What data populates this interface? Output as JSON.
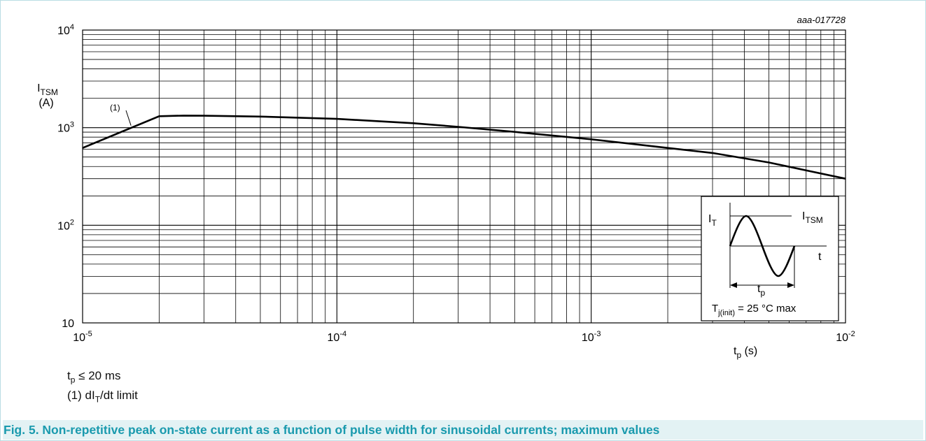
{
  "chart_data": {
    "type": "line",
    "scale": {
      "x": "log",
      "y": "log"
    },
    "xlim": [
      1e-05,
      0.01
    ],
    "ylim": [
      10,
      10000
    ],
    "grid": true,
    "code": "aaa-017728",
    "ylabel": {
      "main": "I",
      "sub": "TSM",
      "unit": "(A)"
    },
    "xlabel": {
      "main": "t",
      "sub": "p",
      "unit": " (s)"
    },
    "x_ticks": [
      {
        "base": "10",
        "exp": "-5"
      },
      {
        "base": "10",
        "exp": "-4"
      },
      {
        "base": "10",
        "exp": "-3"
      },
      {
        "base": "10",
        "exp": "-2"
      }
    ],
    "y_ticks": [
      {
        "base": "10",
        "exp": ""
      },
      {
        "base": "10",
        "exp": "2"
      },
      {
        "base": "10",
        "exp": "3"
      },
      {
        "base": "10",
        "exp": "4"
      }
    ],
    "series": [
      {
        "x": [
          1e-05,
          2e-05,
          2.5e-05,
          3e-05,
          5e-05,
          0.0001,
          0.0002,
          0.0003,
          0.0005,
          0.001,
          0.002,
          0.003,
          0.005,
          0.01
        ],
        "y": [
          620,
          1310,
          1330,
          1325,
          1300,
          1230,
          1110,
          1020,
          905,
          760,
          620,
          550,
          440,
          300
        ]
      }
    ],
    "annotation": "(1)",
    "inset": {
      "y_label": {
        "main": "I",
        "sub": "T"
      },
      "level_label": {
        "main": "I",
        "sub": "TSM"
      },
      "t_label": "t",
      "width_label": {
        "main": "t",
        "sub": "p"
      },
      "condition": {
        "main": "T",
        "sub": "j(init)",
        "rest": " = 25 °C max"
      }
    }
  },
  "notes": {
    "line1": {
      "main": "t",
      "sub": "p",
      "rest": " ≤ 20 ms"
    },
    "line2": {
      "pre": "(1) dI",
      "sub": "T",
      "rest": "/dt limit"
    }
  },
  "caption": "Fig. 5. Non-repetitive peak on-state current as a function of pulse width for sinusoidal currents; maximum values"
}
